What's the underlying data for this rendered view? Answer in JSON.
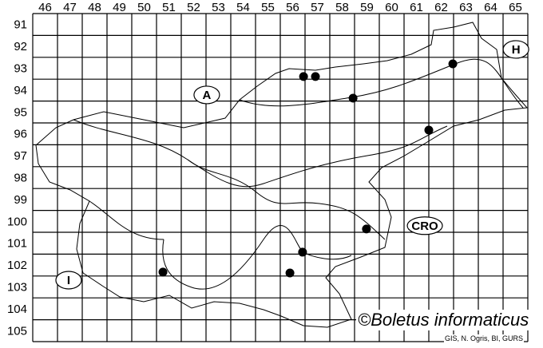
{
  "map": {
    "columns": [
      "46",
      "47",
      "48",
      "49",
      "50",
      "51",
      "52",
      "53",
      "54",
      "55",
      "56",
      "57",
      "58",
      "59",
      "60",
      "61",
      "62",
      "63",
      "64",
      "65"
    ],
    "rows": [
      "91",
      "92",
      "93",
      "94",
      "95",
      "96",
      "97",
      "98",
      "99",
      "100",
      "101",
      "102",
      "103",
      "104",
      "105"
    ],
    "region_labels": [
      {
        "text": "A",
        "col": 53.03,
        "row": 94.72
      },
      {
        "text": "H",
        "col": 65.52,
        "row": 92.64
      },
      {
        "text": "CRO",
        "col": 61.84,
        "row": 100.7
      },
      {
        "text": "I",
        "col": 47.45,
        "row": 103.19
      }
    ],
    "records": [
      {
        "col": 56.94,
        "row": 93.88
      },
      {
        "col": 57.42,
        "row": 93.88
      },
      {
        "col": 58.94,
        "row": 94.87
      },
      {
        "col": 62.97,
        "row": 93.3
      },
      {
        "col": 62.0,
        "row": 96.33
      },
      {
        "col": 59.48,
        "row": 100.85
      },
      {
        "col": 56.9,
        "row": 101.91
      },
      {
        "col": 51.26,
        "row": 102.82
      },
      {
        "col": 56.39,
        "row": 102.86
      }
    ],
    "record_color": "#000000",
    "copyright": "©Boletus informaticus",
    "credit": "GIS, N. Ogris, BI, GURS"
  }
}
